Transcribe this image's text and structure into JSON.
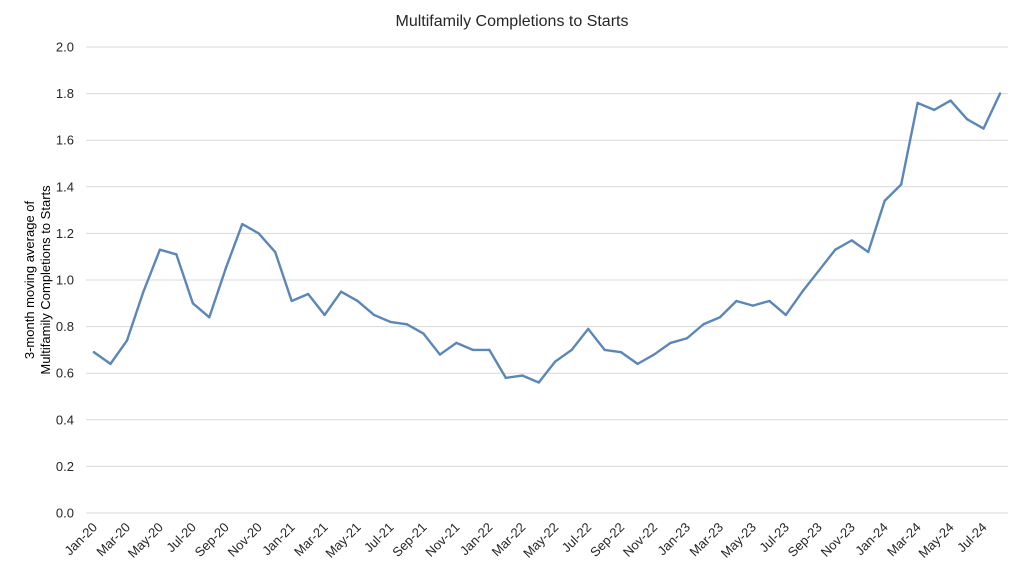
{
  "chart_data": {
    "type": "line",
    "title": "Multifamily Completions to Starts",
    "xlabel": "",
    "ylabel_lines": [
      "3-month moving average of",
      "Multifamily Completions to Starts"
    ],
    "ylim": [
      0,
      2.0
    ],
    "yticks": [
      "0.0",
      "0.2",
      "0.4",
      "0.6",
      "0.8",
      "1.0",
      "1.2",
      "1.4",
      "1.6",
      "1.8",
      "2.0"
    ],
    "grid": true,
    "legend": "none",
    "line_color": "#5b87b8",
    "x": [
      "Jan-20",
      "Feb-20",
      "Mar-20",
      "Apr-20",
      "May-20",
      "Jun-20",
      "Jul-20",
      "Aug-20",
      "Sep-20",
      "Oct-20",
      "Nov-20",
      "Dec-20",
      "Jan-21",
      "Feb-21",
      "Mar-21",
      "Apr-21",
      "May-21",
      "Jun-21",
      "Jul-21",
      "Aug-21",
      "Sep-21",
      "Oct-21",
      "Nov-21",
      "Dec-21",
      "Jan-22",
      "Feb-22",
      "Mar-22",
      "Apr-22",
      "May-22",
      "Jun-22",
      "Jul-22",
      "Aug-22",
      "Sep-22",
      "Oct-22",
      "Nov-22",
      "Dec-22",
      "Jan-23",
      "Feb-23",
      "Mar-23",
      "Apr-23",
      "May-23",
      "Jun-23",
      "Jul-23",
      "Aug-23",
      "Sep-23",
      "Oct-23",
      "Nov-23",
      "Dec-23",
      "Jan-24",
      "Feb-24",
      "Mar-24",
      "Apr-24",
      "May-24",
      "Jun-24",
      "Jul-24",
      "Aug-24"
    ],
    "x_tick_labels": [
      "Jan-20",
      "Mar-20",
      "May-20",
      "Jul-20",
      "Sep-20",
      "Nov-20",
      "Jan-21",
      "Mar-21",
      "May-21",
      "Jul-21",
      "Sep-21",
      "Nov-21",
      "Jan-22",
      "Mar-22",
      "May-22",
      "Jul-22",
      "Sep-22",
      "Nov-22",
      "Jan-23",
      "Mar-23",
      "May-23",
      "Jul-23",
      "Sep-23",
      "Nov-23",
      "Jan-24",
      "Mar-24",
      "May-24",
      "Jul-24"
    ],
    "values": [
      0.69,
      0.64,
      0.74,
      0.95,
      1.13,
      1.11,
      0.9,
      0.84,
      1.05,
      1.24,
      1.2,
      1.12,
      0.91,
      0.94,
      0.85,
      0.95,
      0.91,
      0.85,
      0.82,
      0.81,
      0.77,
      0.68,
      0.73,
      0.7,
      0.7,
      0.58,
      0.59,
      0.56,
      0.65,
      0.7,
      0.79,
      0.7,
      0.69,
      0.64,
      0.68,
      0.73,
      0.75,
      0.81,
      0.84,
      0.91,
      0.89,
      0.91,
      0.85,
      0.95,
      1.04,
      1.13,
      1.17,
      1.12,
      1.34,
      1.41,
      1.76,
      1.73,
      1.77,
      1.69,
      1.65,
      1.8
    ]
  }
}
